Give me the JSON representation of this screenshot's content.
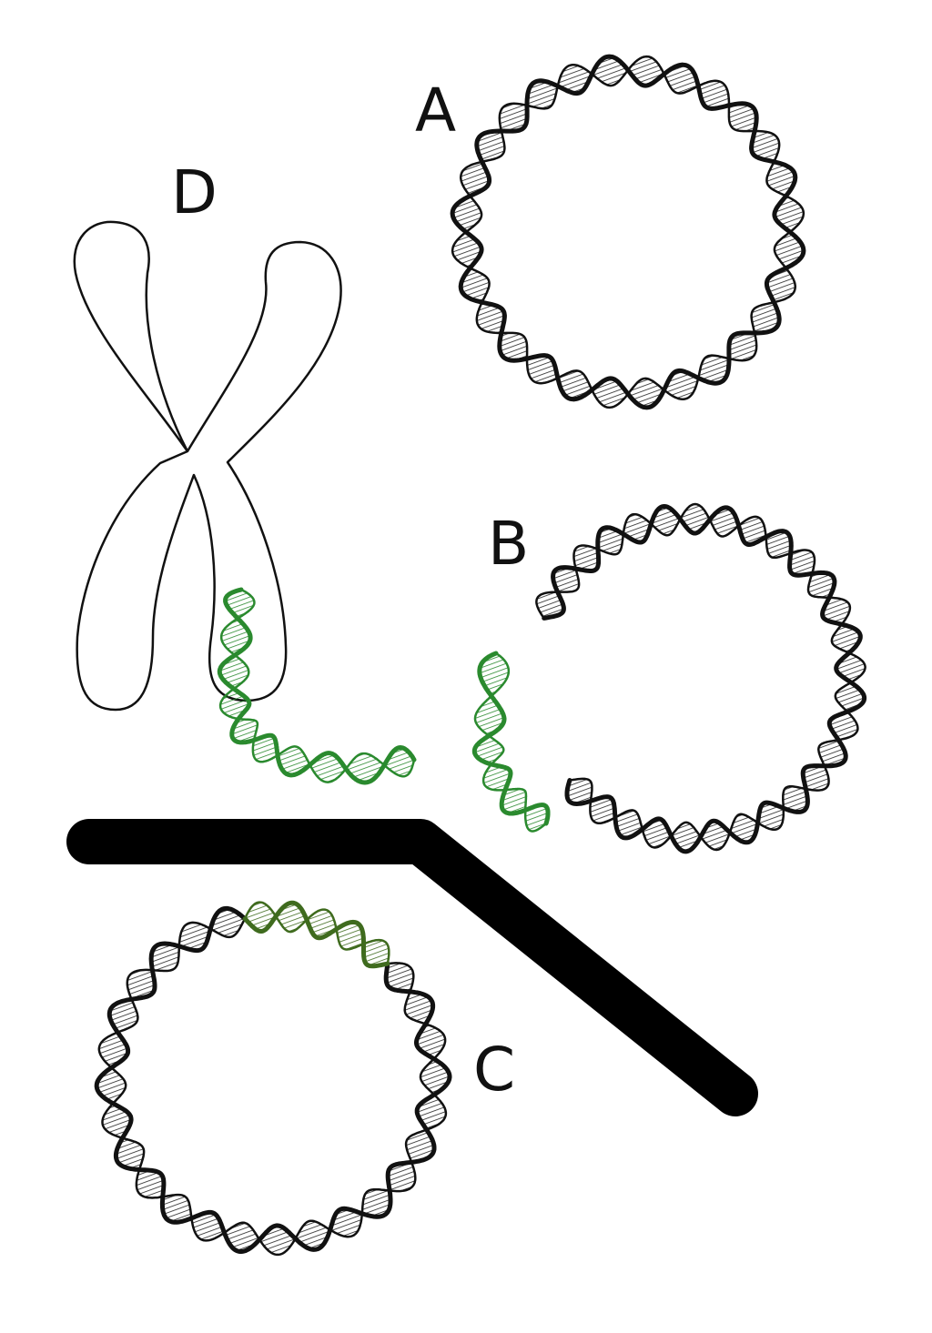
{
  "labels": {
    "plasmid": "A",
    "cut_plasmid": "B",
    "recombinant_plasmid": "C",
    "chromosome": "D"
  },
  "colors": {
    "outline": "#111111",
    "dna_black": "#111111",
    "dna_green": "#2a8a2e",
    "dna_green_dark": "#3f6b1e",
    "arrow": "#000000",
    "background": "#ffffff"
  }
}
